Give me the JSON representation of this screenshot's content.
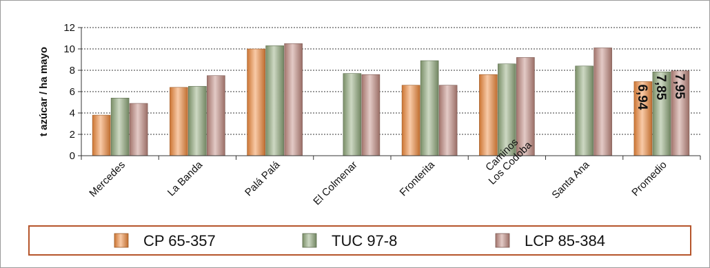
{
  "chart_data": {
    "type": "bar",
    "title": "",
    "xlabel": "",
    "ylabel": "t azúcar / ha mayo",
    "ylim": [
      0,
      12
    ],
    "yticks": [
      0,
      2,
      4,
      6,
      8,
      10,
      12
    ],
    "grid": "horizontal-dotted",
    "legend_position": "bottom",
    "categories": [
      [
        "Mercedes"
      ],
      [
        "La Banda"
      ],
      [
        "Palá Palá"
      ],
      [
        "El Colmenar"
      ],
      [
        "Fronterita"
      ],
      [
        "Caminos",
        "Los Codoba"
      ],
      [
        "Santa Ana"
      ],
      [
        "Promedio"
      ]
    ],
    "series": [
      {
        "name": "CP 65-357",
        "color": "#f08a3c",
        "values": [
          3.8,
          6.4,
          10.0,
          null,
          6.6,
          7.6,
          null,
          6.94
        ]
      },
      {
        "name": "TUC 97-8",
        "color": "#8fa87a",
        "values": [
          5.4,
          6.5,
          10.3,
          7.7,
          8.9,
          8.6,
          8.4,
          7.85
        ]
      },
      {
        "name": "LCP 85-384",
        "color": "#c08a80",
        "values": [
          4.9,
          7.5,
          10.5,
          7.6,
          6.6,
          9.2,
          10.1,
          7.95
        ]
      }
    ],
    "data_labels": [
      {
        "category_index": 7,
        "series_index": 0,
        "text": "6,94"
      },
      {
        "category_index": 7,
        "series_index": 1,
        "text": "7,85"
      },
      {
        "category_index": 7,
        "series_index": 2,
        "text": "7,95"
      }
    ],
    "legend_border_color": "#b5542a"
  }
}
